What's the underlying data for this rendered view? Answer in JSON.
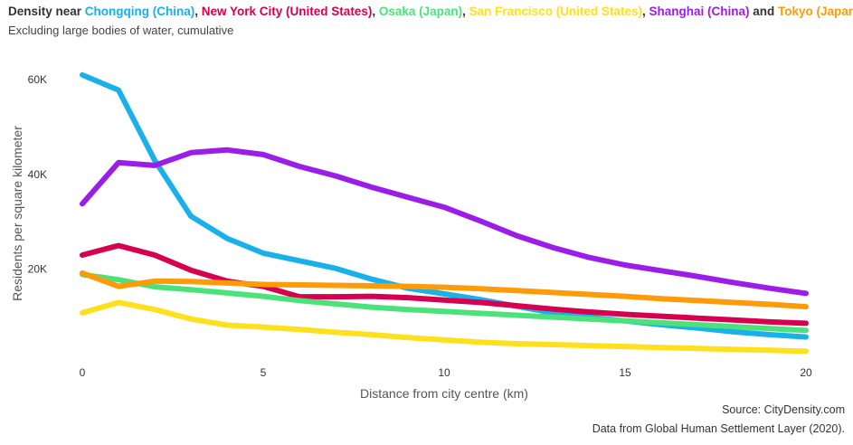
{
  "header": {
    "prefix": "Density near ",
    "and_word": " and ",
    "suffix": ".",
    "subtitle": "Excluding large bodies of water, cumulative"
  },
  "footer": {
    "source": "Source: CityDensity.com",
    "data_note": "Data from Global Human Settlement Layer (2020)."
  },
  "chart_data": {
    "type": "line",
    "title": "Density near Chongqing (China), New York City (United States), Osaka (Japan), San Francisco (United States), Shanghai (China) and Tokyo (Japan).",
    "subtitle": "Excluding large bodies of water, cumulative",
    "xlabel": "Distance from city centre (km)",
    "ylabel": "Residents per square kilometer",
    "xlim": [
      0,
      20
    ],
    "ylim": [
      0,
      62000
    ],
    "xticks": [
      0,
      5,
      10,
      15,
      20
    ],
    "yticks": [
      {
        "value": 20000,
        "label": "20K"
      },
      {
        "value": 40000,
        "label": "40K"
      },
      {
        "value": 60000,
        "label": "60K"
      }
    ],
    "grid": false,
    "x": [
      0,
      1,
      2,
      3,
      4,
      5,
      6,
      7,
      8,
      9,
      10,
      11,
      12,
      13,
      14,
      15,
      16,
      17,
      18,
      19,
      20
    ],
    "series": [
      {
        "name": "Chongqing (China)",
        "color": "#1ab0ea",
        "values": [
          61000,
          57800,
          43000,
          31200,
          26500,
          23400,
          21800,
          20200,
          17900,
          16000,
          14800,
          13600,
          12200,
          10800,
          9900,
          9100,
          8300,
          7600,
          6800,
          6200,
          5700
        ]
      },
      {
        "name": "New York City (United States)",
        "color": "#d6004f",
        "values": [
          23000,
          25000,
          23000,
          19800,
          17500,
          16400,
          14200,
          14200,
          14300,
          14000,
          13500,
          13000,
          12300,
          11600,
          11000,
          10500,
          10100,
          9700,
          9300,
          8900,
          8600
        ]
      },
      {
        "name": "Osaka (Japan)",
        "color": "#4be27b",
        "values": [
          18900,
          17800,
          16300,
          15700,
          15000,
          14300,
          13400,
          12700,
          12000,
          11500,
          11100,
          10700,
          10300,
          9900,
          9500,
          9100,
          8700,
          8300,
          7900,
          7500,
          7100
        ]
      },
      {
        "name": "San Francisco (United States)",
        "color": "#ffe01c",
        "values": [
          10800,
          13000,
          11500,
          9500,
          8200,
          7800,
          7300,
          6700,
          6200,
          5600,
          5100,
          4600,
          4300,
          4100,
          3900,
          3700,
          3500,
          3300,
          3100,
          2900,
          2700
        ]
      },
      {
        "name": "Shanghai (China)",
        "color": "#9b1de8",
        "values": [
          33800,
          42500,
          41900,
          44600,
          45200,
          44200,
          41700,
          39700,
          37300,
          35200,
          33100,
          30200,
          27100,
          24600,
          22500,
          20900,
          19700,
          18500,
          17200,
          16000,
          14900
        ]
      },
      {
        "name": "Tokyo (Japan)",
        "color": "#ff9a09",
        "values": [
          19200,
          16400,
          17500,
          17400,
          17100,
          16800,
          16700,
          16600,
          16500,
          16400,
          16200,
          15900,
          15500,
          15100,
          14700,
          14300,
          13800,
          13400,
          13000,
          12600,
          12100
        ]
      }
    ]
  }
}
